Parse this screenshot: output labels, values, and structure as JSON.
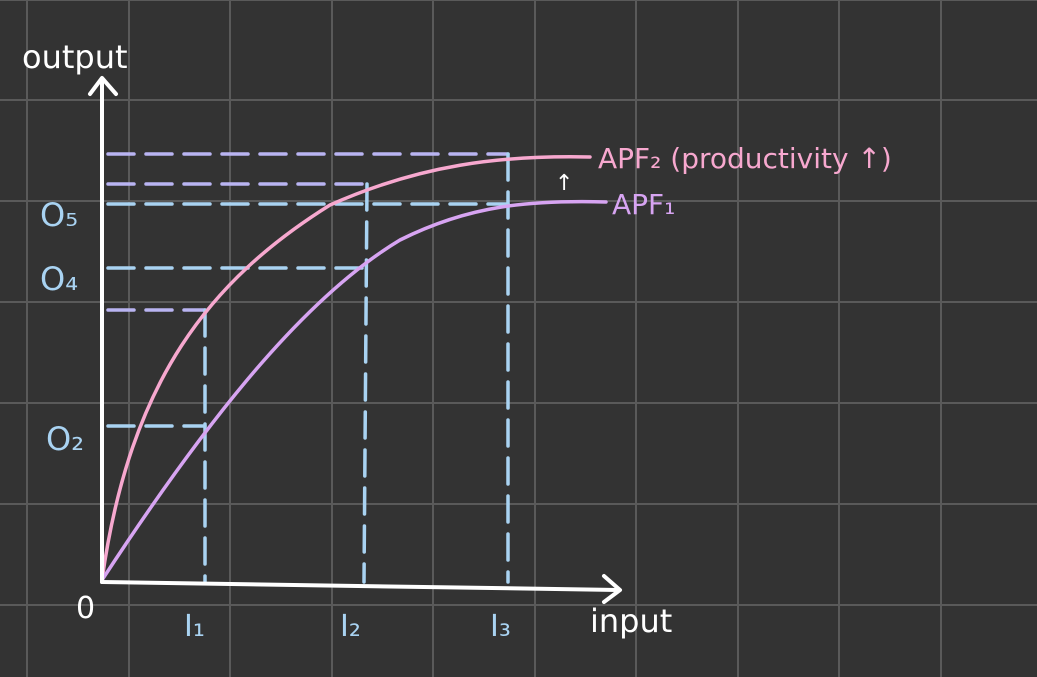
{
  "colors": {
    "background": "#333333",
    "grid": "#5a5a5a",
    "axis": "#ffffff",
    "apf2": "#f7a8cf",
    "apf1": "#d7a4f2",
    "guide_blue": "#a9d3f2",
    "guide_purple": "#b9b4f2"
  },
  "axes": {
    "y_label": "output",
    "x_label": "input",
    "origin": "0"
  },
  "x_ticks": {
    "i1": "I₁",
    "i2": "I₂",
    "i3": "I₃"
  },
  "y_ticks": {
    "o5": "O₅",
    "o4": "O₄",
    "o2": "O₂"
  },
  "curves": {
    "apf2": "APF₂ (productivity ↑)",
    "apf1": "APF₁",
    "shift_arrow": "↑"
  }
}
